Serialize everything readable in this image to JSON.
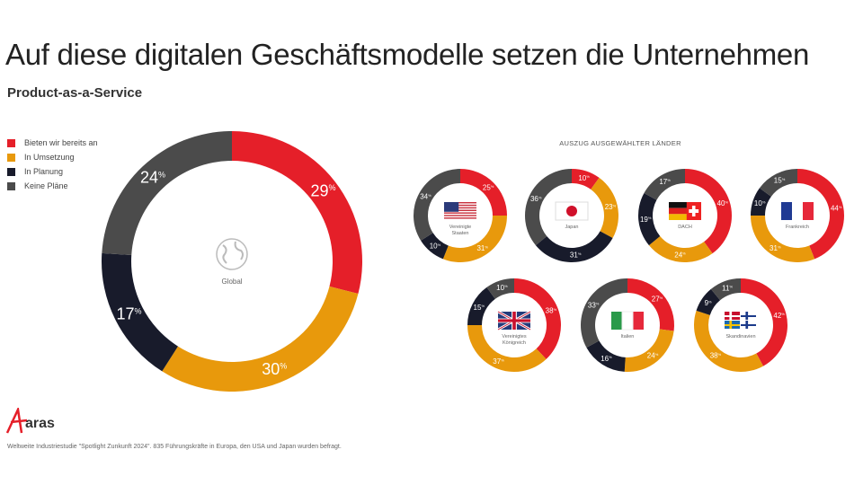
{
  "title": "Auf diese digitalen Geschäftsmodelle setzen die Unternehmen",
  "subtitle": "Product-as-a-Service",
  "section_title": "AUSZUG AUSGEWÄHLTER LÄNDER",
  "footnote": "Weltweite Industriestudie \"Spotlight Zunkunft 2024\". 835 Führungskräfte in Europa, den USA und Japan wurden befragt.",
  "logo_text": "aras",
  "colors": {
    "Bieten wir bereits an": "#e51f29",
    "In Umsetzung": "#e8990c",
    "In Planung": "#181b2b",
    "Keine Pläne": "#4b4b4b"
  },
  "chart_data": [
    {
      "type": "pie",
      "variant": "donut",
      "label": "Global",
      "icon": "globe-icon",
      "categories": [
        "Bieten wir bereits an",
        "In Umsetzung",
        "In Planung",
        "Keine Pläne"
      ],
      "values": [
        29,
        30,
        17,
        24
      ],
      "unit": "%",
      "legend": "top-left"
    },
    {
      "type": "pie",
      "variant": "donut",
      "label": "Vereinigte Staaten",
      "icon": "flag-us",
      "values": [
        25,
        31,
        10,
        34
      ],
      "unit": "%"
    },
    {
      "type": "pie",
      "variant": "donut",
      "label": "Japan",
      "icon": "flag-jp",
      "values": [
        10,
        23,
        31,
        36
      ],
      "unit": "%"
    },
    {
      "type": "pie",
      "variant": "donut",
      "label": "DACH",
      "icon": "flag-dach",
      "values": [
        40,
        24,
        19,
        17
      ],
      "unit": "%"
    },
    {
      "type": "pie",
      "variant": "donut",
      "label": "Frankreich",
      "icon": "flag-fr",
      "values": [
        44,
        31,
        10,
        15
      ],
      "unit": "%"
    },
    {
      "type": "pie",
      "variant": "donut",
      "label": "Vereinigtes Königreich",
      "icon": "flag-uk",
      "values": [
        38,
        37,
        15,
        10
      ],
      "unit": "%"
    },
    {
      "type": "pie",
      "variant": "donut",
      "label": "Italien",
      "icon": "flag-it",
      "values": [
        27,
        24,
        16,
        33
      ],
      "unit": "%"
    },
    {
      "type": "pie",
      "variant": "donut",
      "label": "Skandinavien",
      "icon": "flag-scandinavia",
      "values": [
        42,
        38,
        9,
        11
      ],
      "unit": "%"
    }
  ]
}
